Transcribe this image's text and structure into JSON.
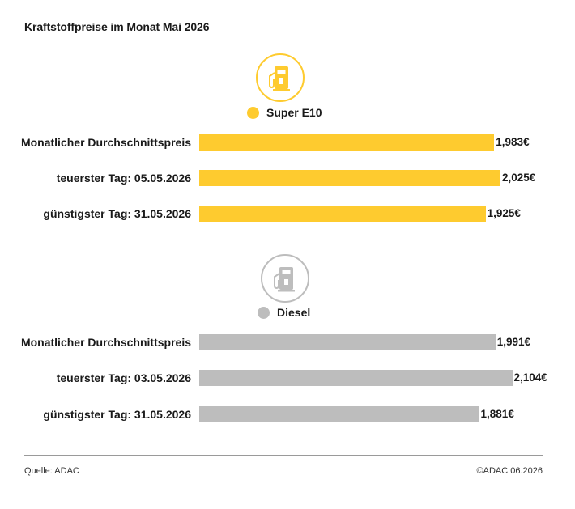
{
  "title": "Kraftstoffpreise im Monat Mai 2026",
  "colors": {
    "e10": "#fecb2f",
    "diesel": "#bdbdbd",
    "iconDark": "#1a1a1a"
  },
  "chart_data": [
    {
      "type": "bar",
      "orientation": "horizontal",
      "legend": "Super E10",
      "icon": "fuel-pump-icon",
      "color": "#fecb2f",
      "categories": [
        "Monatlicher Durchschnittspreis",
        "teuerster Tag: 05.05.2026",
        "günstigster Tag: 31.05.2026"
      ],
      "values": [
        1.983,
        2.025,
        1.925
      ],
      "value_labels": [
        "1,983€",
        "2,025€",
        "1,925€"
      ]
    },
    {
      "type": "bar",
      "orientation": "horizontal",
      "legend": "Diesel",
      "icon": "fuel-pump-icon",
      "color": "#bdbdbd",
      "categories": [
        "Monatlicher Durchschnittspreis",
        "teuerster Tag: 03.05.2026",
        "günstigster Tag: 31.05.2026"
      ],
      "values": [
        1.991,
        2.104,
        1.881
      ],
      "value_labels": [
        "1,991€",
        "2,104€",
        "1,881€"
      ]
    }
  ],
  "footer": {
    "source": "Quelle: ADAC",
    "copyright": "©ADAC 06.2026"
  }
}
